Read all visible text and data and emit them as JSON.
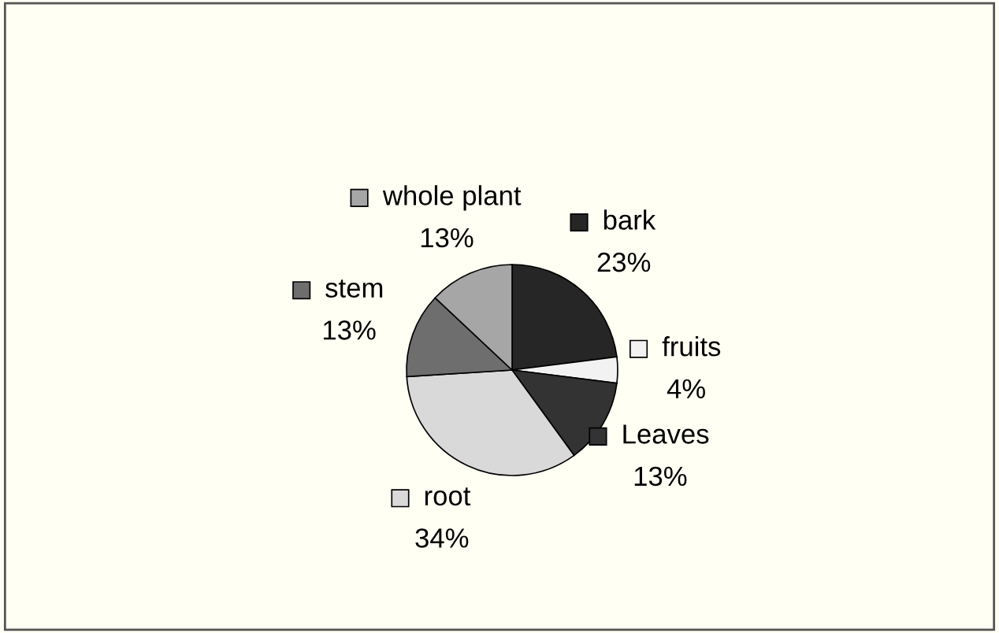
{
  "chart_data": {
    "type": "pie",
    "categories": [
      "bark",
      "fruits",
      "Leaves",
      "root",
      "stem",
      "whole plant"
    ],
    "values": [
      23,
      4,
      13,
      34,
      13,
      13
    ],
    "colors": [
      "#262626",
      "#f2f2f2",
      "#333333",
      "#d9d9d9",
      "#6e6e6e",
      "#a6a6a6"
    ],
    "legend": "center",
    "value_labels": [
      "23%",
      "4%",
      "13%",
      "34%",
      "13%",
      "13%"
    ]
  }
}
